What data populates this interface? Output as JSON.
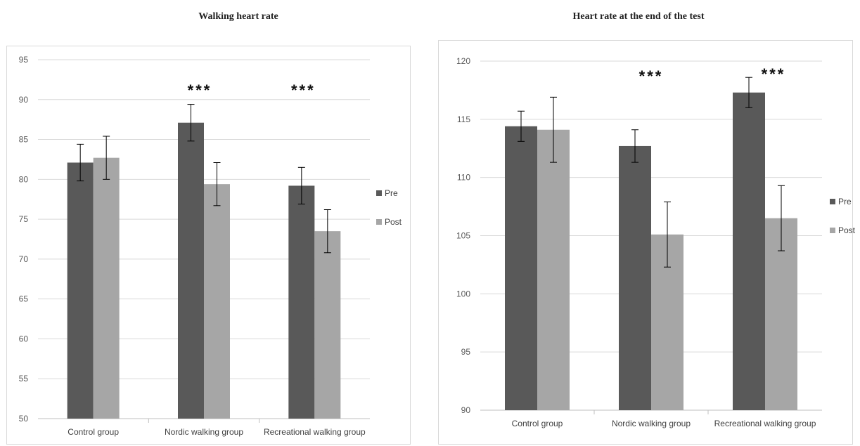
{
  "chart_data": [
    {
      "type": "bar",
      "title": "Walking heart rate",
      "categories": [
        "Control group",
        "Nordic walking group",
        "Recreational walking group"
      ],
      "ylim": [
        50,
        95
      ],
      "yticks": [
        50,
        55,
        60,
        65,
        70,
        75,
        80,
        85,
        90,
        95
      ],
      "grid": true,
      "legend_position": "right",
      "series": [
        {
          "name": "Pre",
          "color": "#595959",
          "values": [
            82.1,
            87.1,
            79.2
          ],
          "errors": [
            2.3,
            2.3,
            2.3
          ]
        },
        {
          "name": "Post",
          "color": "#a6a6a6",
          "values": [
            82.7,
            79.4,
            73.5
          ],
          "errors": [
            2.7,
            2.7,
            2.7
          ]
        }
      ],
      "annotations": [
        {
          "category": "Nordic walking group",
          "text": "***"
        },
        {
          "category": "Recreational walking group",
          "text": "***"
        }
      ]
    },
    {
      "type": "bar",
      "title": "Heart rate at the end of the test",
      "categories": [
        "Control group",
        "Nordic walking group",
        "Recreational walking group"
      ],
      "ylim": [
        90,
        120
      ],
      "yticks": [
        90,
        95,
        100,
        105,
        110,
        115,
        120
      ],
      "grid": true,
      "legend_position": "right",
      "series": [
        {
          "name": "Pre",
          "color": "#595959",
          "values": [
            114.4,
            112.7,
            117.3
          ],
          "errors": [
            1.3,
            1.4,
            1.3
          ]
        },
        {
          "name": "Post",
          "color": "#a6a6a6",
          "values": [
            114.1,
            105.1,
            106.5
          ],
          "errors": [
            2.8,
            2.8,
            2.8
          ]
        }
      ],
      "annotations": [
        {
          "category": "Nordic walking group",
          "text": "***"
        },
        {
          "category": "Recreational walking group",
          "text": "***"
        }
      ]
    }
  ]
}
